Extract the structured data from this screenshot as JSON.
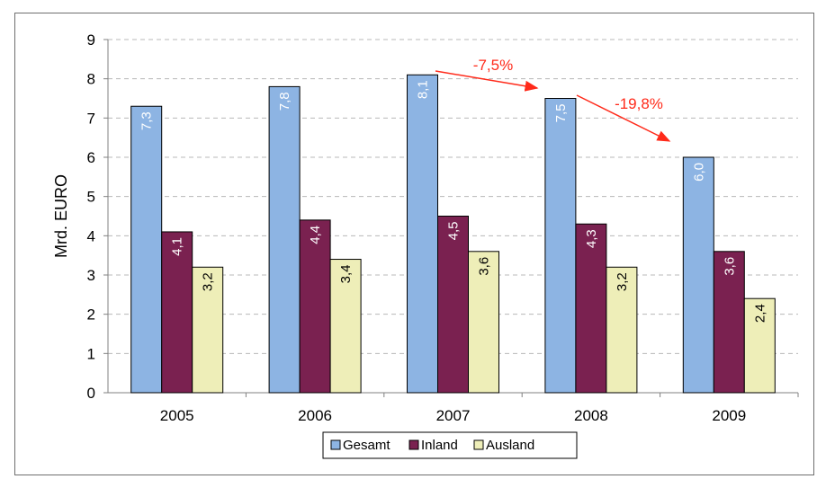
{
  "chart_data": {
    "type": "bar",
    "categories": [
      "2005",
      "2006",
      "2007",
      "2008",
      "2009"
    ],
    "series": [
      {
        "name": "Gesamt",
        "values": [
          7.3,
          7.8,
          8.1,
          7.5,
          6.0
        ],
        "labels": [
          "7,3",
          "7,8",
          "8,1",
          "7,5",
          "6,0"
        ],
        "color": "#8db4e3",
        "label_color": "#ffffff"
      },
      {
        "name": "Inland",
        "values": [
          4.1,
          4.4,
          4.5,
          4.3,
          3.6
        ],
        "labels": [
          "4,1",
          "4,4",
          "4,5",
          "4,3",
          "3,6"
        ],
        "color": "#7a2150",
        "label_color": "#ffffff"
      },
      {
        "name": "Ausland",
        "values": [
          3.2,
          3.4,
          3.6,
          3.2,
          2.4
        ],
        "labels": [
          "3,2",
          "3,4",
          "3,6",
          "3,2",
          "2,4"
        ],
        "color": "#eeeeb8",
        "label_color": "#000000"
      }
    ],
    "ylabel": "Mrd. EURO",
    "ylim": [
      0,
      9
    ],
    "yticks": [
      "0",
      "1",
      "2",
      "3",
      "4",
      "5",
      "6",
      "7",
      "8",
      "9"
    ],
    "grid": true,
    "legend_position": "bottom",
    "annotations": [
      {
        "text": "-7,5%",
        "from": "2007",
        "to": "2008"
      },
      {
        "text": "-19,8%",
        "from": "2008",
        "to": "2009"
      }
    ],
    "annotation_color": "#ff2a1a"
  }
}
